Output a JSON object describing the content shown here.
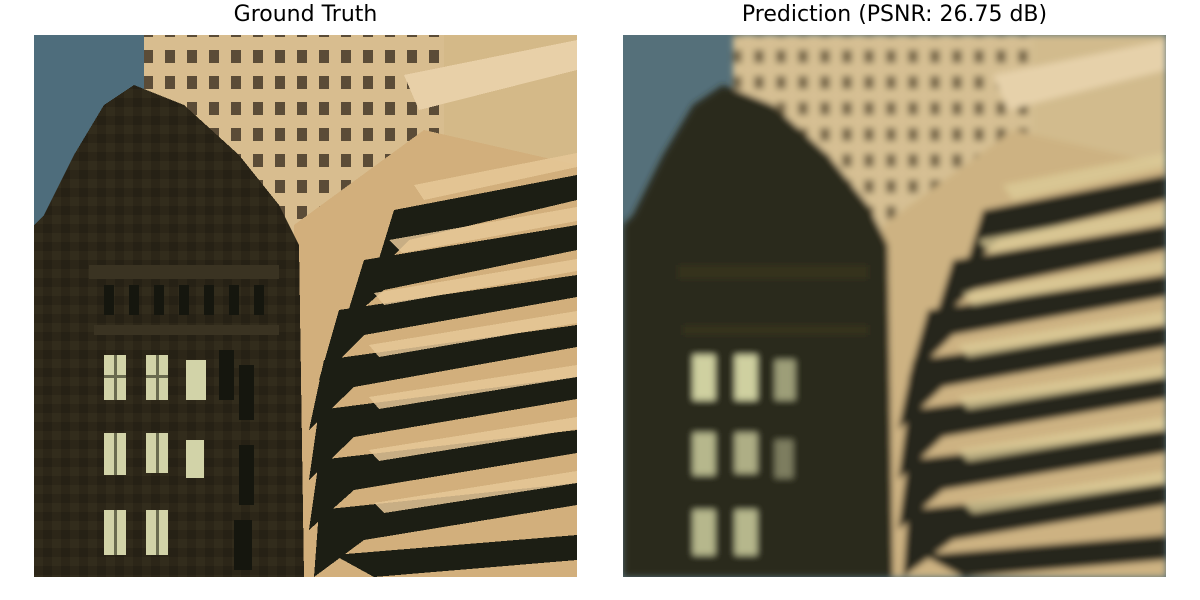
{
  "figure": {
    "left_title": "Ground Truth",
    "right_title": "Prediction (PSNR: 26.75 dB)"
  },
  "colors": {
    "sky": "#4f6f7e",
    "dark_building": "#2c2718",
    "tan_building": "#d1b283",
    "tan_light": "#e2c79b",
    "window_dark": "#1b1d13",
    "lit_window": "#cfd0a5"
  }
}
